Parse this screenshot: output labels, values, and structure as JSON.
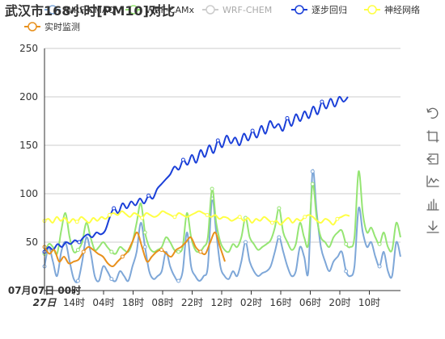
{
  "chart_data": {
    "type": "line",
    "title": "武汉市168小时[PM10]对比",
    "ylim": [
      0,
      250
    ],
    "yticks": [
      50,
      100,
      150,
      200,
      250
    ],
    "x_start_label": "07月07日 00时",
    "x_tick_labels": [
      "27日",
      "14时",
      "04时",
      "18时",
      "08时",
      "22时",
      "12时",
      "02时",
      "16时",
      "06时",
      "20时",
      "10时"
    ],
    "grid": true,
    "legend_position": "top",
    "series": [
      {
        "name": "WRF-CMAQ",
        "color": "#7ea7d8",
        "values": [
          25,
          45,
          30,
          15,
          40,
          50,
          30,
          12,
          10,
          30,
          55,
          40,
          15,
          10,
          25,
          20,
          12,
          10,
          20,
          15,
          10,
          25,
          40,
          70,
          45,
          20,
          12,
          15,
          20,
          40,
          25,
          15,
          10,
          20,
          60,
          25,
          15,
          10,
          15,
          25,
          95,
          60,
          25,
          15,
          12,
          20,
          15,
          30,
          50,
          30,
          20,
          15,
          18,
          20,
          25,
          40,
          55,
          40,
          25,
          15,
          20,
          45,
          35,
          20,
          123,
          80,
          45,
          30,
          20,
          30,
          35,
          40,
          20,
          15,
          25,
          85,
          60,
          45,
          50,
          35,
          25,
          40,
          20,
          15,
          50,
          35
        ]
      },
      {
        "name": "WRF-CAMx",
        "color": "#95e573",
        "values": [
          38,
          48,
          45,
          38,
          62,
          80,
          55,
          40,
          42,
          50,
          70,
          55,
          42,
          45,
          50,
          45,
          40,
          38,
          45,
          42,
          40,
          50,
          70,
          90,
          60,
          45,
          40,
          42,
          45,
          55,
          50,
          42,
          40,
          45,
          80,
          55,
          42,
          40,
          45,
          55,
          105,
          70,
          50,
          42,
          40,
          48,
          45,
          55,
          75,
          55,
          48,
          42,
          45,
          48,
          52,
          65,
          85,
          60,
          50,
          42,
          48,
          70,
          55,
          48,
          110,
          75,
          55,
          50,
          45,
          55,
          60,
          62,
          48,
          45,
          55,
          123,
          80,
          60,
          65,
          55,
          48,
          60,
          45,
          42,
          70,
          55
        ]
      },
      {
        "name": "WRF-CHEM",
        "color": "#cccccc",
        "values": []
      },
      {
        "name": "逐步回归",
        "color": "#1a3fd8",
        "values": [
          40,
          45,
          42,
          48,
          45,
          50,
          48,
          52,
          50,
          55,
          58,
          55,
          60,
          58,
          62,
          75,
          85,
          80,
          90,
          85,
          92,
          88,
          95,
          90,
          98,
          95,
          105,
          110,
          115,
          120,
          128,
          125,
          135,
          130,
          140,
          132,
          145,
          138,
          150,
          142,
          155,
          148,
          160,
          152,
          158,
          150,
          162,
          155,
          165,
          158,
          170,
          162,
          175,
          168,
          172,
          165,
          178,
          170,
          182,
          175,
          185,
          178,
          190,
          182,
          195,
          188,
          198,
          190,
          200,
          195,
          200
        ]
      },
      {
        "name": "神经网络",
        "color": "#ffff44",
        "values": [
          72,
          74,
          70,
          76,
          72,
          75,
          70,
          74,
          71,
          76,
          73,
          70,
          75,
          72,
          76,
          74,
          78,
          80,
          78,
          82,
          79,
          76,
          80,
          78,
          75,
          80,
          78,
          76,
          78,
          82,
          80,
          78,
          76,
          80,
          78,
          76,
          78,
          80,
          82,
          80,
          78,
          76,
          78,
          74,
          76,
          75,
          72,
          74,
          76,
          72,
          75,
          70,
          74,
          72,
          76,
          73,
          70,
          72,
          68,
          72,
          75,
          70,
          74,
          72,
          76,
          78,
          76,
          72,
          70,
          74,
          72,
          68,
          74,
          76,
          78,
          77
        ]
      },
      {
        "name": "实时监测",
        "color": "#e8901c",
        "values": [
          45,
          38,
          42,
          30,
          35,
          28,
          30,
          32,
          40,
          45,
          42,
          38,
          35,
          28,
          25,
          30,
          35,
          40,
          50,
          60,
          45,
          30,
          35,
          40,
          42,
          38,
          35,
          42,
          45,
          50,
          55,
          45,
          40,
          38,
          50,
          60,
          45,
          30
        ]
      }
    ],
    "point_every": 8
  },
  "toolbox": {
    "items": [
      {
        "name": "restore-icon",
        "title": "还原"
      },
      {
        "name": "zoom-icon",
        "title": "区域缩放"
      },
      {
        "name": "zoom-back-icon",
        "title": "区域缩放还原"
      },
      {
        "name": "line-chart-icon",
        "title": "切换为折线图"
      },
      {
        "name": "bar-chart-icon",
        "title": "切换为柱状图"
      },
      {
        "name": "download-icon",
        "title": "保存为图片"
      }
    ]
  }
}
